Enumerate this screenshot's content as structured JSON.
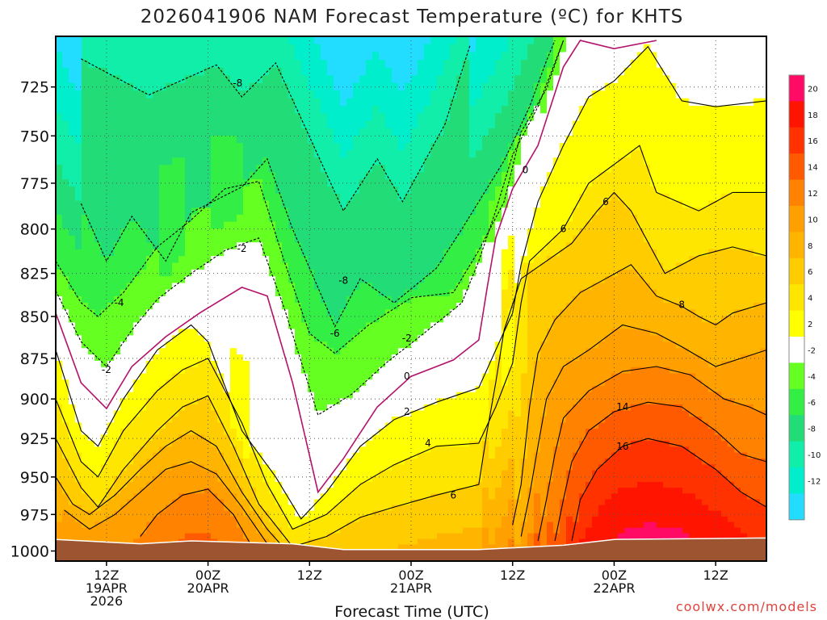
{
  "chart_data": {
    "type": "heatmap",
    "title": "2026041906 NAM Forecast Temperature (ºC) for KHTS",
    "xlabel": "Forecast Time (UTC)",
    "ylabel": "",
    "credit": "coolwx.com/models",
    "x_ticks": [
      {
        "hour": 6,
        "lines": [
          "12Z",
          "19APR",
          "2026"
        ]
      },
      {
        "hour": 18,
        "lines": [
          "00Z",
          "20APR"
        ]
      },
      {
        "hour": 30,
        "lines": [
          "12Z"
        ]
      },
      {
        "hour": 42,
        "lines": [
          "00Z",
          "21APR"
        ]
      },
      {
        "hour": 54,
        "lines": [
          "12Z"
        ]
      },
      {
        "hour": 66,
        "lines": [
          "00Z",
          "22APR"
        ]
      },
      {
        "hour": 78,
        "lines": [
          "12Z"
        ]
      }
    ],
    "xlim": [
      0,
      84
    ],
    "y_ticks": [
      725,
      750,
      775,
      800,
      825,
      850,
      875,
      900,
      925,
      950,
      975,
      1000
    ],
    "ylim_hpa": [
      700,
      1007
    ],
    "colorbar": {
      "labels": [
        "20",
        "18",
        "16",
        "14",
        "12",
        "10",
        "8",
        "6",
        "4",
        "2",
        "-2",
        "-4",
        "-6",
        "-8",
        "-10",
        "-12"
      ],
      "colors": [
        "#ff0a64",
        "#ff1400",
        "#ff3200",
        "#ff5a00",
        "#ff8200",
        "#ffa000",
        "#ffb400",
        "#ffcc00",
        "#ffe600",
        "#ffff00",
        "#ffffff",
        "#66ff22",
        "#33ee44",
        "#22dd77",
        "#11eeaa",
        "#00eecc",
        "#22ddff"
      ]
    },
    "ground": [
      {
        "hour": 0,
        "hpa": 992
      },
      {
        "hour": 10,
        "hpa": 995
      },
      {
        "hour": 16,
        "hpa": 993
      },
      {
        "hour": 28,
        "hpa": 995
      },
      {
        "hour": 34,
        "hpa": 999
      },
      {
        "hour": 50,
        "hpa": 999
      },
      {
        "hour": 60,
        "hpa": 996
      },
      {
        "hour": 66,
        "hpa": 992
      },
      {
        "hour": 84,
        "hpa": 991
      }
    ],
    "levels": [
      -13,
      -10,
      -8,
      -6,
      -4,
      -2,
      0,
      2,
      4,
      6,
      8,
      10,
      12,
      14,
      16,
      18,
      20
    ],
    "contour_lines": [
      {
        "value": -8,
        "points": [
          [
            3,
            711
          ],
          [
            11,
            729
          ],
          [
            19,
            714
          ],
          [
            22,
            730
          ],
          [
            26,
            713
          ],
          [
            34,
            790
          ],
          [
            38,
            762
          ],
          [
            41,
            785
          ],
          [
            46,
            744
          ],
          [
            49,
            704
          ]
        ]
      },
      {
        "value": -6,
        "points": [
          [
            3,
            786
          ],
          [
            6,
            818
          ],
          [
            9,
            793
          ],
          [
            13,
            818
          ],
          [
            16,
            791
          ],
          [
            22,
            777
          ],
          [
            25,
            762
          ],
          [
            28,
            800
          ],
          [
            33,
            856
          ],
          [
            36,
            828
          ],
          [
            40,
            842
          ],
          [
            45,
            822
          ],
          [
            48,
            800
          ],
          [
            53,
            763
          ],
          [
            56,
            735
          ],
          [
            58,
            712
          ],
          [
            59,
            702
          ]
        ]
      },
      {
        "value": -4,
        "points": [
          [
            0,
            818
          ],
          [
            3,
            842
          ],
          [
            5,
            850
          ],
          [
            8,
            836
          ],
          [
            12,
            810
          ],
          [
            16,
            795
          ],
          [
            20,
            778
          ],
          [
            24,
            774
          ],
          [
            27,
            818
          ],
          [
            30,
            860
          ],
          [
            33,
            872
          ],
          [
            37,
            855
          ],
          [
            42,
            839
          ],
          [
            47,
            836
          ],
          [
            50,
            812
          ],
          [
            53,
            785
          ],
          [
            55,
            748
          ],
          [
            58,
            726
          ],
          [
            60,
            702
          ]
        ]
      },
      {
        "value": -2,
        "points": [
          [
            0,
            835
          ],
          [
            3,
            865
          ],
          [
            6,
            880
          ],
          [
            9,
            858
          ],
          [
            12,
            840
          ],
          [
            16,
            825
          ],
          [
            20,
            812
          ],
          [
            24,
            805
          ],
          [
            27,
            845
          ],
          [
            31,
            910
          ],
          [
            35,
            897
          ],
          [
            39,
            878
          ],
          [
            44,
            858
          ],
          [
            48,
            842
          ],
          [
            50,
            818
          ],
          [
            52,
            790
          ],
          [
            54,
            760
          ],
          [
            57,
            735
          ],
          [
            60,
            702
          ]
        ]
      },
      {
        "value": 0,
        "points": [
          [
            0,
            848
          ],
          [
            3,
            890
          ],
          [
            6,
            906
          ],
          [
            9,
            880
          ],
          [
            13,
            862
          ],
          [
            17,
            848
          ],
          [
            22,
            833
          ],
          [
            25,
            838
          ],
          [
            28,
            890
          ],
          [
            31,
            960
          ],
          [
            34,
            938
          ],
          [
            38,
            905
          ],
          [
            42,
            886
          ],
          [
            47,
            876
          ],
          [
            50,
            864
          ],
          [
            51,
            833
          ],
          [
            52,
            805
          ],
          [
            54,
            778
          ],
          [
            57,
            755
          ],
          [
            60,
            715
          ],
          [
            62,
            702
          ],
          [
            66,
            706
          ],
          [
            71,
            702
          ]
        ]
      },
      {
        "value": 2,
        "points": [
          [
            0,
            870
          ],
          [
            3,
            920
          ],
          [
            5,
            930
          ],
          [
            8,
            900
          ],
          [
            12,
            870
          ],
          [
            16,
            855
          ],
          [
            18,
            865
          ],
          [
            22,
            920
          ],
          [
            26,
            950
          ],
          [
            29,
            978
          ],
          [
            32,
            960
          ],
          [
            36,
            930
          ],
          [
            40,
            913
          ],
          [
            45,
            902
          ],
          [
            50,
            893
          ],
          [
            52,
            870
          ],
          [
            54,
            848
          ],
          [
            55,
            820
          ],
          [
            57,
            785
          ],
          [
            60,
            755
          ],
          [
            63,
            730
          ],
          [
            66,
            722
          ],
          [
            70,
            705
          ],
          [
            74,
            732
          ],
          [
            78,
            735
          ],
          [
            84,
            732
          ]
        ]
      },
      {
        "value": 4,
        "points": [
          [
            0,
            900
          ],
          [
            3,
            940
          ],
          [
            5,
            950
          ],
          [
            8,
            920
          ],
          [
            12,
            895
          ],
          [
            15,
            882
          ],
          [
            18,
            875
          ],
          [
            22,
            915
          ],
          [
            25,
            955
          ],
          [
            28,
            985
          ],
          [
            32,
            975
          ],
          [
            36,
            955
          ],
          [
            40,
            942
          ],
          [
            45,
            930
          ],
          [
            50,
            928
          ],
          [
            52,
            905
          ],
          [
            54,
            878
          ],
          [
            55,
            842
          ],
          [
            56,
            818
          ],
          [
            60,
            800
          ],
          [
            63,
            775
          ],
          [
            66,
            765
          ],
          [
            69,
            755
          ],
          [
            71,
            780
          ],
          [
            76,
            790
          ],
          [
            80,
            780
          ],
          [
            84,
            780
          ]
        ]
      },
      {
        "value": 6,
        "points": [
          [
            0,
            925
          ],
          [
            3,
            957
          ],
          [
            5,
            970
          ],
          [
            8,
            945
          ],
          [
            12,
            920
          ],
          [
            15,
            905
          ],
          [
            18,
            898
          ],
          [
            21,
            930
          ],
          [
            24,
            968
          ],
          [
            28,
            997
          ],
          [
            32,
            990
          ],
          [
            36,
            977
          ],
          [
            40,
            970
          ],
          [
            45,
            962
          ],
          [
            50,
            955
          ],
          [
            51,
            920
          ],
          [
            52,
            890
          ],
          [
            53,
            858
          ],
          [
            55,
            828
          ],
          [
            58,
            818
          ],
          [
            61,
            808
          ],
          [
            64,
            790
          ],
          [
            66,
            780
          ],
          [
            68,
            790
          ],
          [
            72,
            825
          ],
          [
            76,
            815
          ],
          [
            80,
            810
          ],
          [
            84,
            815
          ]
        ]
      },
      {
        "value": 8,
        "points": [
          [
            0,
            950
          ],
          [
            2,
            968
          ],
          [
            4,
            975
          ],
          [
            7,
            962
          ],
          [
            10,
            945
          ],
          [
            13,
            930
          ],
          [
            16,
            920
          ],
          [
            19,
            930
          ],
          [
            22,
            960
          ],
          [
            25,
            985
          ],
          [
            27,
            998
          ]
        ]
      },
      {
        "value": 8,
        "points": [
          [
            54,
            982
          ],
          [
            55,
            955
          ],
          [
            56,
            905
          ],
          [
            57,
            872
          ],
          [
            59,
            852
          ],
          [
            62,
            836
          ],
          [
            65,
            828
          ],
          [
            68,
            820
          ],
          [
            71,
            838
          ],
          [
            74,
            844
          ],
          [
            76,
            850
          ],
          [
            78,
            855
          ],
          [
            80,
            848
          ],
          [
            84,
            842
          ]
        ]
      },
      {
        "value": 10,
        "points": [
          [
            1,
            972
          ],
          [
            4,
            985
          ],
          [
            7,
            975
          ],
          [
            10,
            960
          ],
          [
            13,
            945
          ],
          [
            16,
            940
          ],
          [
            19,
            948
          ],
          [
            22,
            970
          ],
          [
            25,
            995
          ]
        ]
      },
      {
        "value": 10,
        "points": [
          [
            55,
            990
          ],
          [
            56,
            962
          ],
          [
            57,
            930
          ],
          [
            58,
            900
          ],
          [
            60,
            880
          ],
          [
            63,
            870
          ],
          [
            67,
            855
          ],
          [
            71,
            860
          ],
          [
            74,
            868
          ],
          [
            78,
            880
          ],
          [
            81,
            875
          ],
          [
            84,
            870
          ]
        ]
      },
      {
        "value": 12,
        "points": [
          [
            10,
            990
          ],
          [
            12,
            975
          ],
          [
            15,
            962
          ],
          [
            18,
            958
          ],
          [
            21,
            975
          ],
          [
            23,
            995
          ]
        ]
      },
      {
        "value": 12,
        "points": [
          [
            57,
            993
          ],
          [
            58,
            965
          ],
          [
            59,
            935
          ],
          [
            60,
            912
          ],
          [
            63,
            895
          ],
          [
            67,
            883
          ],
          [
            71,
            880
          ],
          [
            75,
            885
          ],
          [
            79,
            900
          ],
          [
            82,
            905
          ],
          [
            84,
            910
          ]
        ]
      },
      {
        "value": 14,
        "points": [
          [
            59,
            993
          ],
          [
            60,
            965
          ],
          [
            61,
            940
          ],
          [
            63,
            920
          ],
          [
            66,
            908
          ],
          [
            70,
            902
          ],
          [
            74,
            905
          ],
          [
            78,
            920
          ],
          [
            81,
            935
          ],
          [
            84,
            940
          ]
        ]
      },
      {
        "value": 16,
        "points": [
          [
            61,
            993
          ],
          [
            62,
            965
          ],
          [
            64,
            945
          ],
          [
            67,
            930
          ],
          [
            70,
            925
          ],
          [
            74,
            930
          ],
          [
            78,
            945
          ],
          [
            81,
            960
          ],
          [
            84,
            970
          ]
        ]
      }
    ],
    "contour_labels": [
      {
        "value": "-8",
        "hour": 21.5,
        "hpa": 723
      },
      {
        "value": "-2",
        "hour": 22,
        "hpa": 811
      },
      {
        "value": "-4",
        "hour": 7.5,
        "hpa": 842
      },
      {
        "value": "-8",
        "hour": 34,
        "hpa": 829
      },
      {
        "value": "-6",
        "hour": 33,
        "hpa": 860
      },
      {
        "value": "-2",
        "hour": 41.5,
        "hpa": 863
      },
      {
        "value": "-2",
        "hour": 6,
        "hpa": 882
      },
      {
        "value": "0",
        "hour": 41.5,
        "hpa": 886
      },
      {
        "value": "0",
        "hour": 55.5,
        "hpa": 768
      },
      {
        "value": "2",
        "hour": 41.5,
        "hpa": 908
      },
      {
        "value": "4",
        "hour": 44,
        "hpa": 928
      },
      {
        "value": "6",
        "hour": 60,
        "hpa": 800
      },
      {
        "value": "6",
        "hour": 65,
        "hpa": 785
      },
      {
        "value": "6",
        "hour": 47,
        "hpa": 962
      },
      {
        "value": "8",
        "hour": 74,
        "hpa": 843
      },
      {
        "value": "14",
        "hour": 67,
        "hpa": 905
      },
      {
        "value": "16",
        "hour": 67,
        "hpa": 930
      }
    ]
  }
}
